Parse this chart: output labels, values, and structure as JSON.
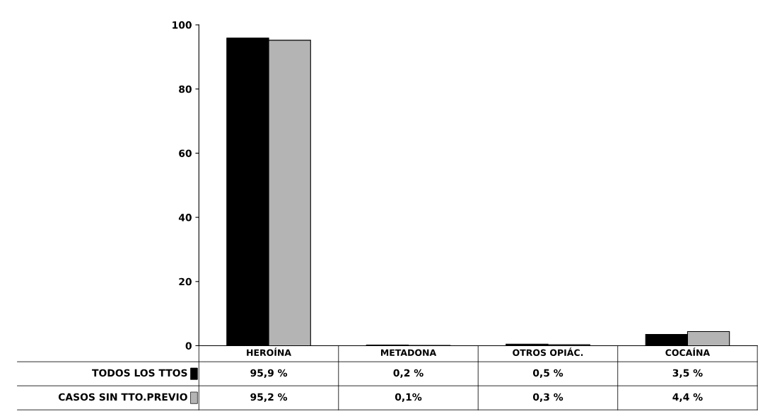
{
  "chart_data": {
    "type": "bar",
    "categories": [
      "HEROÍNA",
      "METADONA",
      "OTROS OPIÁC.",
      "COCAÍNA"
    ],
    "series": [
      {
        "name": "TODOS LOS TTOS",
        "color": "#000000",
        "values": [
          95.9,
          0.2,
          0.5,
          3.5
        ],
        "value_labels": [
          "95,9 %",
          "0,2 %",
          "0,5 %",
          "3,5 %"
        ]
      },
      {
        "name": "CASOS SIN TTO.PREVIO",
        "color": "#b4b4b4",
        "values": [
          95.2,
          0.1,
          0.3,
          4.4
        ],
        "value_labels": [
          "95,2 %",
          "0,1%",
          "0,3 %",
          "4,4 %"
        ]
      }
    ],
    "ylim": [
      0,
      100
    ],
    "yticks": [
      0,
      20,
      40,
      60,
      80,
      100
    ],
    "grid": false,
    "legend": "bottom left"
  }
}
